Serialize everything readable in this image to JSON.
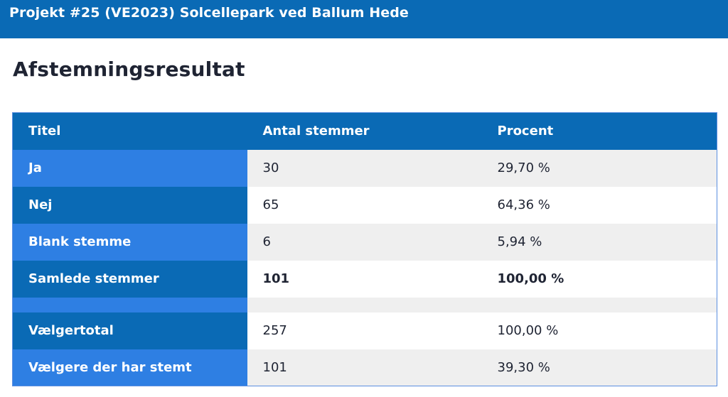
{
  "header": {
    "title": "Projekt #25 (VE2023) Solcellepark ved Ballum Hede"
  },
  "main": {
    "title": "Afstemningsresultat"
  },
  "table": {
    "columns": [
      "Titel",
      "Antal stemmer",
      "Procent"
    ],
    "rows": [
      {
        "label": "Ja",
        "votes": "30",
        "percent": "29,70 %"
      },
      {
        "label": "Nej",
        "votes": "65",
        "percent": "64,36 %"
      },
      {
        "label": "Blank stemme",
        "votes": "6",
        "percent": "5,94 %"
      },
      {
        "label": "Samlede stemmer",
        "votes": "101",
        "percent": "100,00 %"
      },
      {
        "label": "Vælgertotal",
        "votes": "257",
        "percent": "100,00 %"
      },
      {
        "label": "Vælgere der har stemt",
        "votes": "101",
        "percent": "39,30 %"
      }
    ]
  },
  "colors": {
    "header_blue": "#0a6ab5",
    "label_light_blue": "#2e7fe3",
    "row_grey": "#efefef"
  }
}
